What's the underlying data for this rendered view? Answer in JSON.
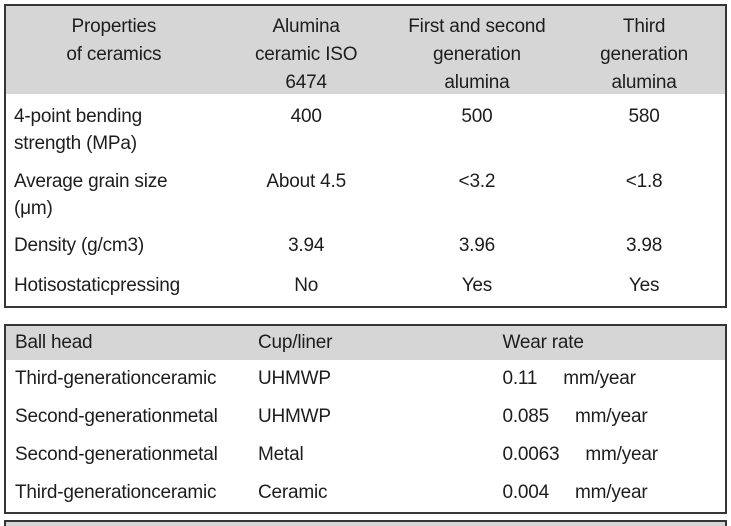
{
  "colors": {
    "header_bg": "#d6d6d6",
    "border": "#363636",
    "text": "#1d1d1d",
    "page_bg": "#ffffff"
  },
  "table1": {
    "headers": [
      "Properties\nof ceramics",
      "Alumina\nceramic ISO\n6474",
      "First and second\ngeneration\nalumina",
      "Third\ngeneration\nalumina"
    ],
    "rows": [
      {
        "label": "4-point bending\nstrength (MPa)",
        "values": [
          "400",
          "500",
          "580"
        ]
      },
      {
        "label": "Average grain size\n(μm)",
        "values": [
          "About 4.5",
          "<3.2",
          "<1.8"
        ]
      },
      {
        "label": "Density (g/cm3)",
        "values": [
          "3.94",
          "3.96",
          "3.98"
        ]
      },
      {
        "label": "Hotisostaticpressing",
        "values": [
          "No",
          "Yes",
          "Yes"
        ]
      }
    ]
  },
  "table2": {
    "headers": [
      "Ball head",
      "Cup/liner",
      "Wear rate"
    ],
    "rows": [
      {
        "ball_head": "Third-generationceramic",
        "cup_liner": "UHMWP",
        "wear_value": "0.11",
        "wear_unit": "mm/year"
      },
      {
        "ball_head": "Second-generationmetal",
        "cup_liner": "UHMWP",
        "wear_value": "0.085",
        "wear_unit": "mm/year"
      },
      {
        "ball_head": "Second-generationmetal",
        "cup_liner": "Metal",
        "wear_value": "0.0063",
        "wear_unit": "mm/year"
      },
      {
        "ball_head": "Third-generationceramic",
        "cup_liner": "Ceramic",
        "wear_value": "0.004",
        "wear_unit": "mm/year"
      }
    ]
  }
}
